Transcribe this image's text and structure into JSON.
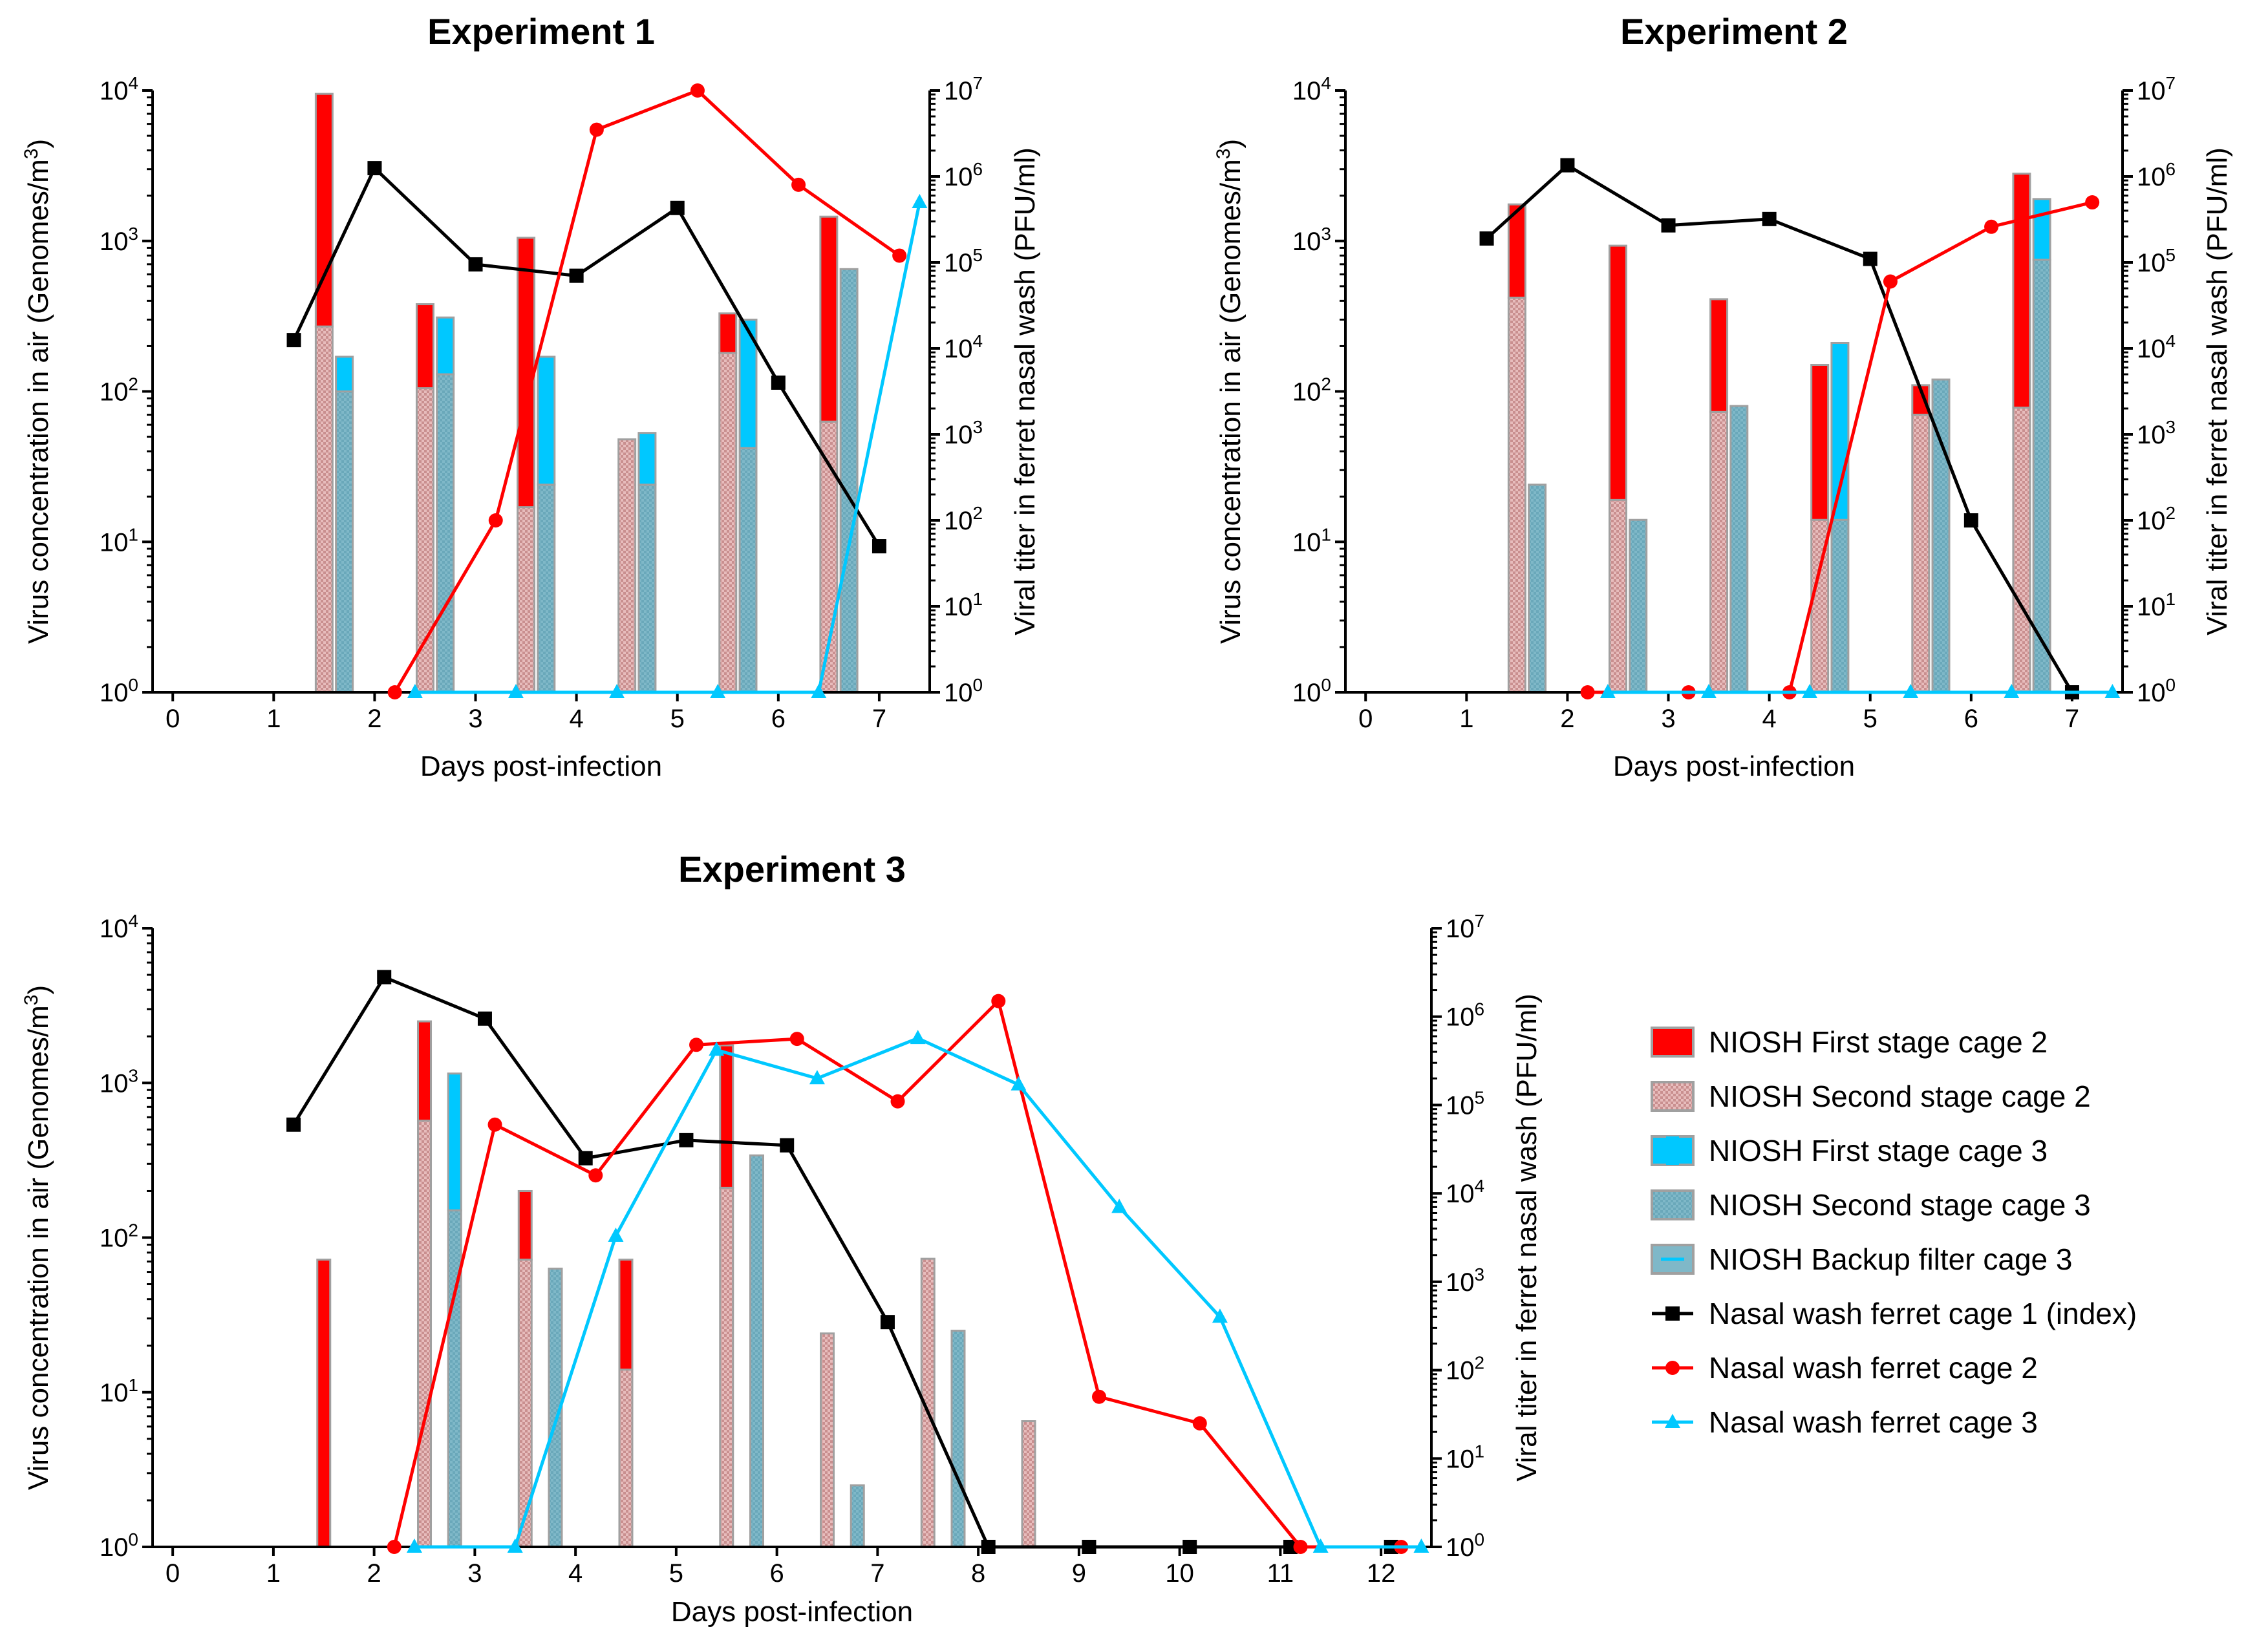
{
  "colors": {
    "red": "#ff0000",
    "cyan": "#00c8ff",
    "gray_outline": "#a0a0a0",
    "stage2_fill": "#d8a3a3",
    "backup_fill": "#7fb8c8",
    "black": "#000000"
  },
  "legend": {
    "items": [
      {
        "key": "ffs2",
        "label": "NIOSH First stage cage 2",
        "kind": "bar",
        "fill": "#ff0000"
      },
      {
        "key": "ss2",
        "label": "NIOSH Second stage cage 2",
        "kind": "bar",
        "fill": "#d8a3a3"
      },
      {
        "key": "fs3",
        "label": "NIOSH First stage cage 3",
        "kind": "bar",
        "fill": "#00c8ff"
      },
      {
        "key": "ss3",
        "label": "NIOSH Second stage cage 3",
        "kind": "bar",
        "fill": "#7fb8c8"
      },
      {
        "key": "bu3",
        "label": "NIOSH Backup filter cage 3",
        "kind": "bar",
        "fill": "#7fb8c8"
      },
      {
        "key": "nw1",
        "label": "Nasal wash ferret cage 1 (index)",
        "kind": "line",
        "color": "#000000",
        "marker": "square"
      },
      {
        "key": "nw2",
        "label": "Nasal wash ferret cage 2",
        "kind": "line",
        "color": "#ff0000",
        "marker": "circle"
      },
      {
        "key": "nw3",
        "label": "Nasal wash ferret cage 3",
        "kind": "line",
        "color": "#00c8ff",
        "marker": "triangle"
      }
    ]
  },
  "chart_data": [
    {
      "type": "bar+line",
      "title": "Experiment 1",
      "xlabel": "Days post-infection",
      "ylabel_left": "Virus concentration in air (Genomes/m",
      "ylabel_left_sup": "3",
      "ylabel_left_close": ")",
      "ylabel_right": "Viral titer in ferret nasal wash (PFU/ml)",
      "xlim": [
        -0.2,
        7.5
      ],
      "x_ticks": [
        0,
        1,
        2,
        3,
        4,
        5,
        6,
        7
      ],
      "x_tick_labels": [
        "0",
        "1",
        "2",
        "3",
        "4",
        "5",
        "6",
        "7"
      ],
      "yleft_scale": "log10",
      "yleft_range": [
        1,
        10000
      ],
      "yleft_tick_labels": [
        {
          "base": "10",
          "exp": "0"
        },
        {
          "base": "10",
          "exp": "1"
        },
        {
          "base": "10",
          "exp": "2"
        },
        {
          "base": "10",
          "exp": "3"
        },
        {
          "base": "10",
          "exp": "4"
        }
      ],
      "yright_scale": "log10",
      "yright_range": [
        1,
        10000000
      ],
      "yright_tick_labels": [
        {
          "base": "10",
          "exp": "0"
        },
        {
          "base": "10",
          "exp": "1"
        },
        {
          "base": "10",
          "exp": "2"
        },
        {
          "base": "10",
          "exp": "3"
        },
        {
          "base": "10",
          "exp": "4"
        },
        {
          "base": "10",
          "exp": "5"
        },
        {
          "base": "10",
          "exp": "6"
        },
        {
          "base": "10",
          "exp": "7"
        }
      ],
      "bars": [
        {
          "x": 1.5,
          "cage": 2,
          "total": 9500,
          "second": 270
        },
        {
          "x": 1.7,
          "cage": 3,
          "total": 170,
          "second": 100
        },
        {
          "x": 2.5,
          "cage": 2,
          "total": 380,
          "second": 105
        },
        {
          "x": 2.7,
          "cage": 3,
          "total": 310,
          "second": 130
        },
        {
          "x": 3.5,
          "cage": 2,
          "total": 1050,
          "second": 17
        },
        {
          "x": 3.7,
          "cage": 3,
          "total": 170,
          "second": 24
        },
        {
          "x": 4.5,
          "cage": 2,
          "total": 48,
          "second": 48
        },
        {
          "x": 4.7,
          "cage": 3,
          "total": 53,
          "second": 24
        },
        {
          "x": 5.5,
          "cage": 2,
          "total": 330,
          "second": 180
        },
        {
          "x": 5.7,
          "cage": 3,
          "total": 300,
          "second": 42
        },
        {
          "x": 6.5,
          "cage": 2,
          "total": 1450,
          "second": 63
        },
        {
          "x": 6.7,
          "cage": 3,
          "total": 650,
          "second": 650
        }
      ],
      "series": [
        {
          "name": "Nasal wash ferret cage 1 (index)",
          "marker": "square",
          "color": "#000000",
          "x": [
            1.2,
            2.0,
            3.0,
            4.0,
            5.0,
            6.0,
            7.0
          ],
          "y": [
            12500,
            1250000,
            95000,
            70000,
            430000,
            4000,
            50
          ]
        },
        {
          "name": "Nasal wash ferret cage 2",
          "marker": "circle",
          "color": "#ff0000",
          "x": [
            2.2,
            3.2,
            4.2,
            5.2,
            6.2,
            7.2
          ],
          "y": [
            1,
            100,
            3500000,
            10000000,
            800000,
            120000
          ]
        },
        {
          "name": "Nasal wash ferret cage 3",
          "marker": "triangle",
          "color": "#00c8ff",
          "x": [
            2.4,
            3.4,
            4.4,
            5.4,
            6.4,
            7.4
          ],
          "y": [
            1,
            1,
            1,
            1,
            1,
            500000
          ]
        }
      ]
    },
    {
      "type": "bar+line",
      "title": "Experiment 2",
      "xlabel": "Days post-infection",
      "ylabel_left": "Virus concentration in air (Genomes/m",
      "ylabel_left_sup": "3",
      "ylabel_left_close": ")",
      "ylabel_right": "Viral titer in ferret nasal wash (PFU/ml)",
      "xlim": [
        -0.2,
        7.5
      ],
      "x_ticks": [
        0,
        1,
        2,
        3,
        4,
        5,
        6,
        7
      ],
      "x_tick_labels": [
        "0",
        "1",
        "2",
        "3",
        "4",
        "5",
        "6",
        "7"
      ],
      "yleft_scale": "log10",
      "yleft_range": [
        1,
        10000
      ],
      "yleft_tick_labels": [
        {
          "base": "10",
          "exp": "0"
        },
        {
          "base": "10",
          "exp": "1"
        },
        {
          "base": "10",
          "exp": "2"
        },
        {
          "base": "10",
          "exp": "3"
        },
        {
          "base": "10",
          "exp": "4"
        }
      ],
      "yright_scale": "log10",
      "yright_range": [
        1,
        10000000
      ],
      "yright_tick_labels": [
        {
          "base": "10",
          "exp": "0"
        },
        {
          "base": "10",
          "exp": "1"
        },
        {
          "base": "10",
          "exp": "2"
        },
        {
          "base": "10",
          "exp": "3"
        },
        {
          "base": "10",
          "exp": "4"
        },
        {
          "base": "10",
          "exp": "5"
        },
        {
          "base": "10",
          "exp": "6"
        },
        {
          "base": "10",
          "exp": "7"
        }
      ],
      "bars": [
        {
          "x": 1.5,
          "cage": 2,
          "total": 1750,
          "second": 420
        },
        {
          "x": 1.7,
          "cage": 3,
          "total": 24,
          "second": 24
        },
        {
          "x": 2.5,
          "cage": 2,
          "total": 930,
          "second": 19
        },
        {
          "x": 2.7,
          "cage": 3,
          "total": 14,
          "second": 14
        },
        {
          "x": 3.5,
          "cage": 2,
          "total": 410,
          "second": 73
        },
        {
          "x": 3.7,
          "cage": 3,
          "total": 80,
          "second": 80
        },
        {
          "x": 4.5,
          "cage": 2,
          "total": 150,
          "second": 14
        },
        {
          "x": 4.7,
          "cage": 3,
          "total": 210,
          "second": 14
        },
        {
          "x": 5.5,
          "cage": 2,
          "total": 110,
          "second": 70
        },
        {
          "x": 5.7,
          "cage": 3,
          "total": 120,
          "second": 120
        },
        {
          "x": 6.5,
          "cage": 2,
          "total": 2800,
          "second": 78
        },
        {
          "x": 6.7,
          "cage": 3,
          "total": 1900,
          "second": 750
        }
      ],
      "series": [
        {
          "name": "Nasal wash ferret cage 1 (index)",
          "marker": "square",
          "color": "#000000",
          "x": [
            1.2,
            2.0,
            3.0,
            4.0,
            5.0,
            6.0,
            7.0
          ],
          "y": [
            190000,
            1350000,
            270000,
            320000,
            110000,
            100,
            1
          ]
        },
        {
          "name": "Nasal wash ferret cage 2",
          "marker": "circle",
          "color": "#ff0000",
          "x": [
            2.2,
            3.2,
            4.2,
            5.2,
            6.2,
            7.2
          ],
          "y": [
            1,
            1,
            1,
            60000,
            260000,
            500000
          ]
        },
        {
          "name": "Nasal wash ferret cage 3",
          "marker": "triangle",
          "color": "#00c8ff",
          "x": [
            2.4,
            3.4,
            4.4,
            5.4,
            6.4,
            7.4
          ],
          "y": [
            1,
            1,
            1,
            1,
            1,
            1
          ]
        }
      ]
    },
    {
      "type": "bar+line",
      "title": "Experiment 3",
      "xlabel": "Days post-infection",
      "ylabel_left": "Virus concentration in air (Genomes/m",
      "ylabel_left_sup": "3",
      "ylabel_left_close": ")",
      "ylabel_right": "Viral titer in ferret nasal wash (PFU/ml)",
      "xlim": [
        -0.2,
        12.5
      ],
      "x_ticks": [
        0,
        1,
        2,
        3,
        4,
        5,
        6,
        7,
        8,
        9,
        10,
        11,
        12
      ],
      "x_tick_labels": [
        "0",
        "1",
        "2",
        "3",
        "4",
        "5",
        "6",
        "7",
        "8",
        "9",
        "10",
        "11",
        "12"
      ],
      "yleft_scale": "log10",
      "yleft_range": [
        1,
        10000
      ],
      "yleft_tick_labels": [
        {
          "base": "10",
          "exp": "0"
        },
        {
          "base": "10",
          "exp": "1"
        },
        {
          "base": "10",
          "exp": "2"
        },
        {
          "base": "10",
          "exp": "3"
        },
        {
          "base": "10",
          "exp": "4"
        }
      ],
      "yright_scale": "log10",
      "yright_range": [
        1,
        10000000
      ],
      "yright_tick_labels": [
        {
          "base": "10",
          "exp": "0"
        },
        {
          "base": "10",
          "exp": "1"
        },
        {
          "base": "10",
          "exp": "2"
        },
        {
          "base": "10",
          "exp": "3"
        },
        {
          "base": "10",
          "exp": "4"
        },
        {
          "base": "10",
          "exp": "5"
        },
        {
          "base": "10",
          "exp": "6"
        },
        {
          "base": "10",
          "exp": "7"
        }
      ],
      "bars": [
        {
          "x": 1.5,
          "cage": 2,
          "total": 72,
          "second": 1
        },
        {
          "x": 2.5,
          "cage": 2,
          "total": 2500,
          "second": 570
        },
        {
          "x": 2.8,
          "cage": 3,
          "total": 1150,
          "second": 150
        },
        {
          "x": 3.5,
          "cage": 2,
          "total": 200,
          "second": 72
        },
        {
          "x": 3.8,
          "cage": 3,
          "total": 63,
          "second": 63
        },
        {
          "x": 4.5,
          "cage": 2,
          "total": 72,
          "second": 14
        },
        {
          "x": 5.5,
          "cage": 2,
          "total": 1750,
          "second": 210
        },
        {
          "x": 5.8,
          "cage": 3,
          "total": 340,
          "second": 340
        },
        {
          "x": 6.5,
          "cage": 2,
          "total": 24,
          "second": 24
        },
        {
          "x": 6.8,
          "cage": 3,
          "total": 2.5,
          "second": 2.5
        },
        {
          "x": 7.5,
          "cage": 2,
          "total": 73,
          "second": 73
        },
        {
          "x": 7.8,
          "cage": 3,
          "total": 25,
          "second": 25
        },
        {
          "x": 8.5,
          "cage": 2,
          "total": 6.5,
          "second": 6.5
        }
      ],
      "series": [
        {
          "name": "Nasal wash ferret cage 1 (index)",
          "marker": "square",
          "color": "#000000",
          "x": [
            1.2,
            2.1,
            3.1,
            4.1,
            5.1,
            6.1,
            7.1,
            8.1,
            9.1,
            10.1,
            11.1,
            12.1
          ],
          "y": [
            60000,
            2800000,
            950000,
            25000,
            40000,
            35000,
            350,
            1,
            1,
            1,
            1,
            1
          ]
        },
        {
          "name": "Nasal wash ferret cage 2",
          "marker": "circle",
          "color": "#ff0000",
          "x": [
            2.2,
            3.2,
            4.2,
            5.2,
            6.2,
            7.2,
            8.2,
            9.2,
            10.2,
            11.2,
            12.2
          ],
          "y": [
            1,
            60000,
            16000,
            480000,
            560000,
            110000,
            1500000,
            50,
            25,
            1,
            1
          ]
        },
        {
          "name": "Nasal wash ferret cage 3",
          "marker": "triangle",
          "color": "#00c8ff",
          "x": [
            2.4,
            3.4,
            4.4,
            5.4,
            6.4,
            7.4,
            8.4,
            9.4,
            10.4,
            11.4,
            12.4
          ],
          "y": [
            1,
            1,
            3300,
            420000,
            200000,
            570000,
            170000,
            7000,
            400,
            1,
            1
          ]
        }
      ]
    }
  ]
}
